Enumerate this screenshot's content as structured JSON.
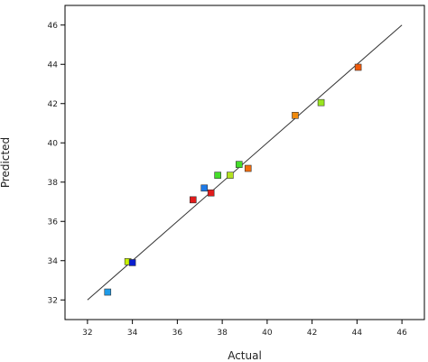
{
  "chart_data": {
    "type": "scatter",
    "title": "",
    "xlabel": "Actual",
    "ylabel": "Predicted",
    "xlim": [
      31,
      47
    ],
    "ylim": [
      31,
      47
    ],
    "xticks": [
      32,
      34,
      36,
      38,
      40,
      42,
      44,
      46
    ],
    "yticks": [
      32,
      34,
      36,
      38,
      40,
      42,
      44,
      46
    ],
    "grid": false,
    "reference_line": {
      "x": [
        32,
        46
      ],
      "y": [
        32,
        46
      ]
    },
    "points": [
      {
        "x": 32.9,
        "y": 32.4,
        "color": "#1e9be8"
      },
      {
        "x": 33.8,
        "y": 33.95,
        "color": "#c6f200"
      },
      {
        "x": 34.0,
        "y": 33.9,
        "color": "#0a1fd0"
      },
      {
        "x": 36.7,
        "y": 37.1,
        "color": "#e21b1b"
      },
      {
        "x": 37.2,
        "y": 37.7,
        "color": "#1e7ae8"
      },
      {
        "x": 37.5,
        "y": 37.45,
        "color": "#e21b1b"
      },
      {
        "x": 37.8,
        "y": 38.35,
        "color": "#44dd2a"
      },
      {
        "x": 38.35,
        "y": 38.35,
        "color": "#b4e21f"
      },
      {
        "x": 38.75,
        "y": 38.9,
        "color": "#44dd2a"
      },
      {
        "x": 39.15,
        "y": 38.7,
        "color": "#f26c0d"
      },
      {
        "x": 41.25,
        "y": 41.4,
        "color": "#f08a0d"
      },
      {
        "x": 42.4,
        "y": 42.05,
        "color": "#9ae61f"
      },
      {
        "x": 44.05,
        "y": 43.85,
        "color": "#f05a0a"
      }
    ]
  }
}
